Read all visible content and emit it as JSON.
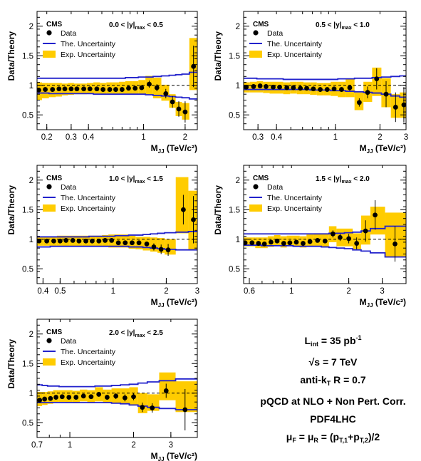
{
  "chart_data": [
    {
      "type": "scatter",
      "xscale": "log",
      "xlim": [
        0.17,
        2.45
      ],
      "ylim": [
        0.25,
        2.25
      ],
      "tag": "CMS",
      "rapidity_min": "0.0",
      "rapidity_max": "0.5",
      "ylabel": "Data/Theory",
      "xlabel": "M",
      "xlabel_sub": "JJ",
      "xlabel_unit": "(TeV/c²)",
      "xticks": [
        0.2,
        0.3,
        0.4,
        1,
        2
      ],
      "xticklabels": [
        "0.2",
        "0.3",
        "0.4",
        "1",
        "2"
      ],
      "yticks": [
        0.5,
        1,
        1.5,
        2
      ],
      "yticklabels": [
        "0.5",
        "1",
        "1.5",
        "2"
      ],
      "legend": [
        "Data",
        "The. Uncertainty",
        "Exp. Uncertainty"
      ],
      "x": [
        0.175,
        0.195,
        0.22,
        0.245,
        0.27,
        0.3,
        0.33,
        0.37,
        0.41,
        0.46,
        0.51,
        0.57,
        0.63,
        0.7,
        0.78,
        0.87,
        0.97,
        1.1,
        1.25,
        1.45,
        1.62,
        1.8,
        2.0,
        2.3
      ],
      "y": [
        0.92,
        0.93,
        0.93,
        0.94,
        0.94,
        0.94,
        0.94,
        0.94,
        0.94,
        0.94,
        0.93,
        0.93,
        0.93,
        0.93,
        0.95,
        0.95,
        0.96,
        1.02,
        0.96,
        0.86,
        0.72,
        0.6,
        0.55,
        1.32
      ],
      "yerr": [
        0.02,
        0.02,
        0.02,
        0.02,
        0.02,
        0.02,
        0.02,
        0.02,
        0.02,
        0.02,
        0.02,
        0.02,
        0.02,
        0.02,
        0.02,
        0.02,
        0.02,
        0.06,
        0.06,
        0.08,
        0.1,
        0.13,
        0.18,
        0.35
      ],
      "exp_unc_low": [
        0.75,
        0.78,
        0.8,
        0.81,
        0.83,
        0.84,
        0.85,
        0.85,
        0.86,
        0.86,
        0.85,
        0.86,
        0.84,
        0.85,
        0.85,
        0.84,
        0.84,
        0.83,
        0.78,
        0.74,
        0.62,
        0.48,
        0.42,
        0.92
      ],
      "exp_unc_high": [
        1.05,
        1.04,
        1.04,
        1.04,
        1.03,
        1.04,
        1.03,
        1.03,
        1.04,
        1.05,
        1.04,
        1.05,
        1.05,
        1.06,
        1.07,
        1.07,
        1.09,
        1.16,
        1.13,
        1.01,
        0.85,
        0.72,
        0.7,
        1.8
      ],
      "theory_unc_low": [
        0.87,
        0.87,
        0.86,
        0.86,
        0.86,
        0.86,
        0.86,
        0.86,
        0.86,
        0.85,
        0.85,
        0.85,
        0.85,
        0.85,
        0.85,
        0.85,
        0.85,
        0.84,
        0.83,
        0.82,
        0.81,
        0.8,
        0.79,
        0.77
      ],
      "theory_unc_high": [
        1.12,
        1.12,
        1.12,
        1.12,
        1.12,
        1.12,
        1.12,
        1.12,
        1.12,
        1.12,
        1.12,
        1.12,
        1.12,
        1.12,
        1.13,
        1.13,
        1.14,
        1.14,
        1.15,
        1.16,
        1.17,
        1.18,
        1.19,
        1.22
      ]
    },
    {
      "type": "scatter",
      "xscale": "log",
      "xlim": [
        0.24,
        3.0
      ],
      "ylim": [
        0.25,
        2.25
      ],
      "tag": "CMS",
      "rapidity_min": "0.5",
      "rapidity_max": "1.0",
      "ylabel": "Data/Theory",
      "xlabel": "M",
      "xlabel_sub": "JJ",
      "xlabel_unit": "(TeV/c²)",
      "xticks": [
        0.3,
        0.4,
        1,
        2,
        3
      ],
      "xticklabels": [
        "0.3",
        "0.4",
        "1",
        "2",
        "3"
      ],
      "yticks": [
        0.5,
        1,
        1.5,
        2
      ],
      "yticklabels": [
        "0.5",
        "1",
        "1.5",
        "2"
      ],
      "legend": [
        "Data",
        "The. Uncertainty",
        "Exp. Uncertainty"
      ],
      "x": [
        0.25,
        0.28,
        0.31,
        0.34,
        0.38,
        0.42,
        0.47,
        0.52,
        0.58,
        0.64,
        0.71,
        0.79,
        0.88,
        0.98,
        1.1,
        1.25,
        1.45,
        1.65,
        1.9,
        2.2,
        2.55,
        2.9
      ],
      "y": [
        0.97,
        0.98,
        0.99,
        0.98,
        0.97,
        0.97,
        0.96,
        0.96,
        0.95,
        0.95,
        0.94,
        0.93,
        0.93,
        0.94,
        0.93,
        0.96,
        0.71,
        0.88,
        1.11,
        0.85,
        0.63,
        0.67
      ],
      "yerr": [
        0.02,
        0.02,
        0.02,
        0.02,
        0.02,
        0.02,
        0.02,
        0.02,
        0.02,
        0.02,
        0.02,
        0.02,
        0.02,
        0.02,
        0.03,
        0.05,
        0.07,
        0.1,
        0.18,
        0.22,
        0.25,
        0.3
      ],
      "exp_unc_low": [
        0.88,
        0.88,
        0.88,
        0.87,
        0.86,
        0.86,
        0.85,
        0.86,
        0.85,
        0.85,
        0.84,
        0.83,
        0.83,
        0.82,
        0.8,
        0.8,
        0.58,
        0.72,
        0.82,
        0.63,
        0.45,
        0.45
      ],
      "exp_unc_high": [
        1.05,
        1.06,
        1.07,
        1.06,
        1.06,
        1.06,
        1.05,
        1.06,
        1.06,
        1.05,
        1.05,
        1.04,
        1.04,
        1.06,
        1.06,
        1.1,
        0.88,
        1.06,
        1.3,
        1.12,
        0.85,
        0.88
      ],
      "theory_unc_low": [
        0.93,
        0.93,
        0.93,
        0.93,
        0.93,
        0.93,
        0.93,
        0.93,
        0.93,
        0.93,
        0.92,
        0.92,
        0.92,
        0.91,
        0.91,
        0.9,
        0.89,
        0.88,
        0.87,
        0.85,
        0.82,
        0.8
      ],
      "theory_unc_high": [
        1.12,
        1.12,
        1.11,
        1.11,
        1.11,
        1.11,
        1.1,
        1.1,
        1.1,
        1.1,
        1.1,
        1.1,
        1.1,
        1.1,
        1.11,
        1.11,
        1.12,
        1.12,
        1.13,
        1.14,
        1.15,
        1.16
      ]
    },
    {
      "type": "scatter",
      "xscale": "log",
      "xlim": [
        0.37,
        3.0
      ],
      "ylim": [
        0.25,
        2.25
      ],
      "tag": "CMS",
      "rapidity_min": "1.0",
      "rapidity_max": "1.5",
      "ylabel": "Data/Theory",
      "xlabel": "M",
      "xlabel_sub": "JJ",
      "xlabel_unit": "(TeV/c²)",
      "xticks": [
        0.4,
        0.5,
        1,
        2,
        3
      ],
      "xticklabels": [
        "0.4",
        "0.5",
        "1",
        "2",
        "3"
      ],
      "yticks": [
        0.5,
        1,
        1.5,
        2
      ],
      "yticklabels": [
        "0.5",
        "1",
        "1.5",
        "2"
      ],
      "legend": [
        "Data",
        "The. Uncertainty",
        "Exp. Uncertainty"
      ],
      "x": [
        0.38,
        0.42,
        0.46,
        0.5,
        0.54,
        0.59,
        0.64,
        0.7,
        0.76,
        0.83,
        0.9,
        0.98,
        1.07,
        1.17,
        1.28,
        1.4,
        1.55,
        1.7,
        1.87,
        2.05,
        2.5,
        2.85
      ],
      "y": [
        0.97,
        0.97,
        0.97,
        0.97,
        0.98,
        0.98,
        0.97,
        0.97,
        0.97,
        0.97,
        0.98,
        0.98,
        0.94,
        0.94,
        0.94,
        0.94,
        0.92,
        0.87,
        0.83,
        0.82,
        1.5,
        1.33
      ],
      "yerr": [
        0.02,
        0.02,
        0.02,
        0.02,
        0.02,
        0.02,
        0.02,
        0.02,
        0.02,
        0.02,
        0.02,
        0.02,
        0.02,
        0.02,
        0.03,
        0.03,
        0.04,
        0.06,
        0.08,
        0.1,
        0.25,
        0.4
      ],
      "exp_unc_low": [
        0.89,
        0.89,
        0.89,
        0.89,
        0.88,
        0.88,
        0.88,
        0.88,
        0.87,
        0.87,
        0.87,
        0.86,
        0.86,
        0.86,
        0.84,
        0.83,
        0.81,
        0.79,
        0.77,
        0.74,
        1.1,
        0.82
      ],
      "exp_unc_high": [
        1.05,
        1.05,
        1.05,
        1.06,
        1.06,
        1.06,
        1.06,
        1.06,
        1.06,
        1.06,
        1.07,
        1.08,
        1.08,
        1.08,
        1.06,
        1.04,
        1.04,
        1.03,
        1.02,
        1.0,
        2.05,
        1.82
      ],
      "theory_unc_low": [
        0.87,
        0.87,
        0.88,
        0.88,
        0.88,
        0.88,
        0.88,
        0.88,
        0.88,
        0.88,
        0.88,
        0.88,
        0.88,
        0.88,
        0.87,
        0.87,
        0.86,
        0.85,
        0.84,
        0.83,
        0.82,
        0.82
      ],
      "theory_unc_high": [
        1.04,
        1.04,
        1.04,
        1.04,
        1.04,
        1.04,
        1.04,
        1.04,
        1.05,
        1.05,
        1.05,
        1.05,
        1.06,
        1.06,
        1.07,
        1.07,
        1.08,
        1.09,
        1.1,
        1.11,
        1.12,
        1.13
      ]
    },
    {
      "type": "scatter",
      "xscale": "log",
      "xlim": [
        0.56,
        4.0
      ],
      "ylim": [
        0.25,
        2.25
      ],
      "tag": "CMS",
      "rapidity_min": "1.5",
      "rapidity_max": "2.0",
      "ylabel": "Data/Theory",
      "xlabel": "M",
      "xlabel_sub": "JJ",
      "xlabel_unit": "(TeV/c²)",
      "xticks": [
        0.6,
        1,
        2,
        3
      ],
      "xticklabels": [
        "0.6",
        "1",
        "2",
        "3"
      ],
      "yticks": [
        0.5,
        1,
        1.5,
        2
      ],
      "yticklabels": [
        "0.5",
        "1",
        "1.5",
        "2"
      ],
      "legend": [
        "Data",
        "The. Uncertainty",
        "Exp. Uncertainty"
      ],
      "x": [
        0.57,
        0.62,
        0.67,
        0.72,
        0.78,
        0.84,
        0.91,
        0.98,
        1.06,
        1.15,
        1.25,
        1.37,
        1.5,
        1.65,
        1.8,
        2.0,
        2.2,
        2.45,
        2.75,
        3.5
      ],
      "y": [
        0.94,
        0.94,
        0.93,
        0.92,
        0.95,
        0.97,
        0.93,
        0.94,
        0.95,
        0.93,
        0.96,
        0.98,
        0.97,
        1.09,
        1.03,
        1.01,
        0.93,
        1.14,
        1.41,
        0.92
      ],
      "yerr": [
        0.02,
        0.02,
        0.02,
        0.02,
        0.02,
        0.02,
        0.02,
        0.02,
        0.02,
        0.02,
        0.02,
        0.03,
        0.04,
        0.06,
        0.06,
        0.08,
        0.1,
        0.18,
        0.25,
        0.3
      ],
      "exp_unc_low": [
        0.88,
        0.88,
        0.85,
        0.85,
        0.87,
        0.89,
        0.86,
        0.88,
        0.88,
        0.86,
        0.88,
        0.89,
        0.87,
        0.95,
        0.88,
        0.88,
        0.83,
        0.91,
        1.08,
        0.7
      ],
      "exp_unc_high": [
        1.03,
        1.03,
        1.03,
        1.03,
        1.05,
        1.07,
        1.05,
        1.06,
        1.06,
        1.05,
        1.08,
        1.1,
        1.1,
        1.22,
        1.18,
        1.18,
        1.1,
        1.4,
        1.55,
        1.45
      ],
      "theory_unc_low": [
        0.9,
        0.9,
        0.9,
        0.89,
        0.89,
        0.89,
        0.89,
        0.89,
        0.88,
        0.88,
        0.88,
        0.88,
        0.87,
        0.86,
        0.85,
        0.84,
        0.82,
        0.8,
        0.77,
        0.7
      ],
      "theory_unc_high": [
        1.09,
        1.09,
        1.09,
        1.09,
        1.09,
        1.09,
        1.09,
        1.09,
        1.09,
        1.09,
        1.09,
        1.09,
        1.09,
        1.1,
        1.1,
        1.11,
        1.12,
        1.14,
        1.18,
        1.22
      ]
    },
    {
      "type": "scatter",
      "xscale": "log",
      "xlim": [
        0.7,
        4.0
      ],
      "ylim": [
        0.25,
        2.25
      ],
      "tag": "CMS",
      "rapidity_min": "2.0",
      "rapidity_max": "2.5",
      "ylabel": "Data/Theory",
      "xlabel": "M",
      "xlabel_sub": "JJ",
      "xlabel_unit": "(TeV/c²)",
      "xticks": [
        0.7,
        1,
        2,
        3
      ],
      "xticklabels": [
        "0.7",
        "1",
        "2",
        "3"
      ],
      "yticks": [
        0.5,
        1,
        1.5,
        2
      ],
      "yticklabels": [
        "0.5",
        "1",
        "1.5",
        "2"
      ],
      "legend": [
        "Data",
        "The. Uncertainty",
        "Exp. Uncertainty"
      ],
      "x": [
        0.72,
        0.76,
        0.81,
        0.86,
        0.92,
        0.99,
        1.07,
        1.16,
        1.26,
        1.37,
        1.5,
        1.65,
        1.82,
        2.0,
        2.2,
        2.45,
        2.85,
        3.5
      ],
      "y": [
        0.88,
        0.9,
        0.91,
        0.93,
        0.94,
        0.93,
        0.93,
        0.95,
        0.94,
        0.98,
        0.93,
        0.95,
        0.92,
        0.94,
        0.76,
        0.75,
        1.04,
        0.72
      ],
      "yerr": [
        0.03,
        0.03,
        0.03,
        0.03,
        0.03,
        0.03,
        0.03,
        0.03,
        0.03,
        0.04,
        0.04,
        0.05,
        0.06,
        0.06,
        0.08,
        0.08,
        0.12,
        0.35
      ],
      "exp_unc_low": [
        0.78,
        0.8,
        0.82,
        0.85,
        0.85,
        0.84,
        0.83,
        0.86,
        0.83,
        0.86,
        0.83,
        0.84,
        0.82,
        0.79,
        0.66,
        0.7,
        0.88,
        0.68
      ],
      "exp_unc_high": [
        1.02,
        1.02,
        1.03,
        1.05,
        1.05,
        1.05,
        1.04,
        1.06,
        1.05,
        1.1,
        1.06,
        1.08,
        1.08,
        1.1,
        1.0,
        0.98,
        1.35,
        1.2
      ],
      "theory_unc_low": [
        0.84,
        0.84,
        0.84,
        0.84,
        0.84,
        0.84,
        0.84,
        0.84,
        0.84,
        0.84,
        0.84,
        0.83,
        0.82,
        0.8,
        0.78,
        0.76,
        0.74,
        0.72
      ],
      "theory_unc_high": [
        1.14,
        1.13,
        1.12,
        1.12,
        1.11,
        1.11,
        1.11,
        1.11,
        1.11,
        1.12,
        1.12,
        1.13,
        1.14,
        1.15,
        1.17,
        1.19,
        1.21,
        1.24
      ]
    }
  ],
  "info": {
    "lumi": "L",
    "lumi_sub": "int",
    "lumi_value": "= 35 pb",
    "lumi_sup": "-1",
    "sqrt_s": "√s = 7 TeV",
    "algo_prefix": "anti-k",
    "algo_sub": "T",
    "algo_suffix": " R = 0.7",
    "calc": "pQCD at NLO + Non Pert. Corr.",
    "pdf": "PDF4LHC",
    "mu_F": "μ",
    "mu_F_sub": "F",
    "mu_R": "= μ",
    "mu_R_sub": "R",
    "pt_open": "= (p",
    "pt1_sub": "T,1",
    "pt_plus": "+p",
    "pt2_sub": "T,2",
    "pt_close": ")/2"
  },
  "colors": {
    "exp_band": "#ffcc00",
    "theory_line": "#2222cc",
    "data": "#000000",
    "frame": "#000000"
  }
}
